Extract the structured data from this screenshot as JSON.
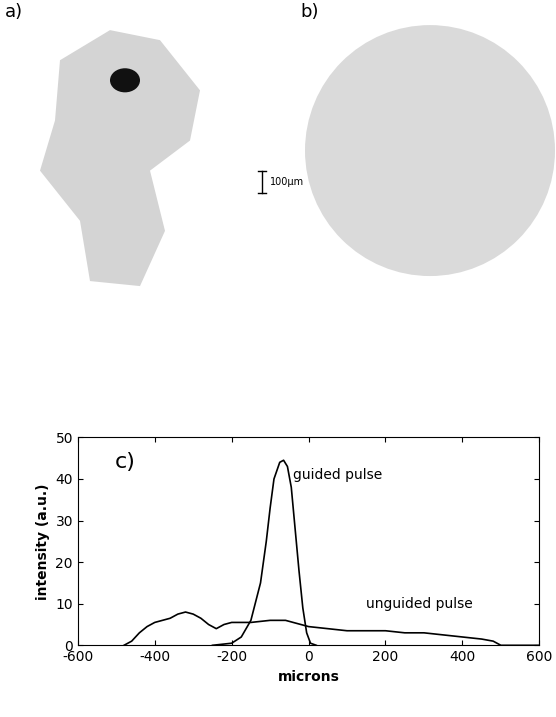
{
  "panels": [
    {
      "label": "a)"
    },
    {
      "label": "b)"
    }
  ],
  "scale_bar": {
    "label": "100µm"
  },
  "chart_data": {
    "type": "line",
    "annotations": [
      {
        "text": "c)"
      }
    ],
    "x_label": "microns",
    "y_label": "intensity (a.u.)",
    "xlim": [
      -600,
      600
    ],
    "xticks": [
      -600,
      -400,
      -200,
      0,
      200,
      400,
      600
    ],
    "ylim": [
      0,
      50
    ],
    "yticks": [
      0,
      10,
      20,
      30,
      40,
      50
    ],
    "series": [
      {
        "name": "guided pulse",
        "color": "#000000",
        "x": [
          -250,
          -200,
          -175,
          -150,
          -125,
          -110,
          -100,
          -90,
          -75,
          -65,
          -55,
          -45,
          -35,
          -25,
          -15,
          -5,
          5,
          20
        ],
        "values": [
          0,
          0.5,
          2,
          6,
          15,
          25,
          33,
          40,
          44,
          44.5,
          43,
          38,
          28,
          18,
          9,
          3,
          0.5,
          0
        ]
      },
      {
        "name": "unguided pulse",
        "color": "#000000",
        "x": [
          -480,
          -460,
          -440,
          -420,
          -400,
          -380,
          -360,
          -340,
          -320,
          -300,
          -280,
          -260,
          -240,
          -220,
          -200,
          -150,
          -100,
          -60,
          -20,
          0,
          50,
          100,
          150,
          200,
          250,
          300,
          350,
          400,
          450,
          480,
          500,
          550,
          600
        ],
        "values": [
          0,
          1,
          3,
          4.5,
          5.5,
          6,
          6.5,
          7.5,
          8,
          7.5,
          6.5,
          5,
          4,
          5,
          5.5,
          5.5,
          6,
          6,
          5,
          4.5,
          4,
          3.5,
          3.5,
          3.5,
          3,
          3,
          2.5,
          2,
          1.5,
          1,
          0,
          0,
          0
        ]
      }
    ]
  }
}
